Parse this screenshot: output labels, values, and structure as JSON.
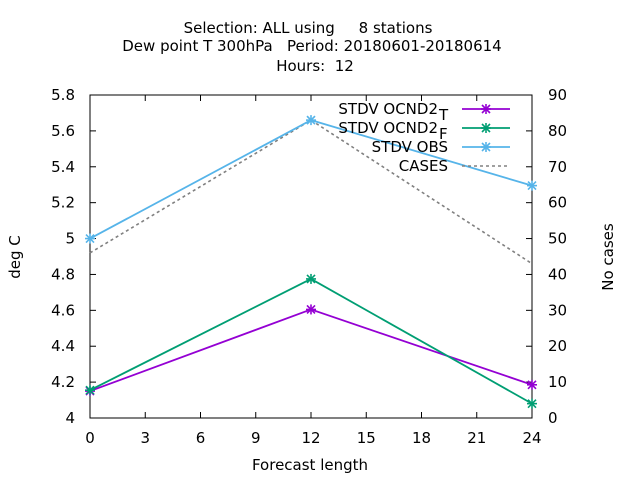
{
  "chart_data": {
    "type": "line",
    "title_lines": [
      "Selection: ALL using     8 stations",
      "Dew point T 300hPa   Period: 20180601-20180614",
      "Hours:  12"
    ],
    "xlabel": "Forecast length",
    "ylabel": "deg C",
    "y2label": "No cases",
    "x_ticks": [
      0,
      3,
      6,
      9,
      12,
      15,
      18,
      21,
      24
    ],
    "y_ticks": [
      "4",
      "4.2",
      "4.4",
      "4.6",
      "4.8",
      "5",
      "5.2",
      "5.4",
      "5.6",
      "5.8"
    ],
    "y2_ticks": [
      "0",
      "10",
      "20",
      "30",
      "40",
      "50",
      "60",
      "70",
      "80",
      "90"
    ],
    "xlim": [
      0,
      24
    ],
    "ylim": [
      4.0,
      5.8
    ],
    "y2lim": [
      0,
      90
    ],
    "legend_position": "top-right",
    "grid": false,
    "series": [
      {
        "name": "STDV OCND2",
        "subscript": "T",
        "axis": "left",
        "color": "#9400d3",
        "marker": "x-star",
        "dashed": false,
        "x": [
          0,
          12,
          24
        ],
        "y": [
          4.15,
          4.605,
          4.185
        ]
      },
      {
        "name": "STDV OCND2",
        "subscript": "F",
        "axis": "left",
        "color": "#009e73",
        "marker": "x-star",
        "dashed": false,
        "x": [
          0,
          12,
          24
        ],
        "y": [
          4.155,
          4.775,
          4.08
        ]
      },
      {
        "name": "STDV OBS",
        "axis": "left",
        "color": "#56b4e9",
        "marker": "x-star",
        "dashed": false,
        "x": [
          0,
          12,
          24
        ],
        "y": [
          5.0,
          5.66,
          5.295
        ]
      },
      {
        "name": "CASES",
        "axis": "right",
        "color": "#808080",
        "marker": "none",
        "dashed": true,
        "x": [
          0,
          12,
          24
        ],
        "y": [
          46,
          83,
          43
        ]
      }
    ]
  }
}
